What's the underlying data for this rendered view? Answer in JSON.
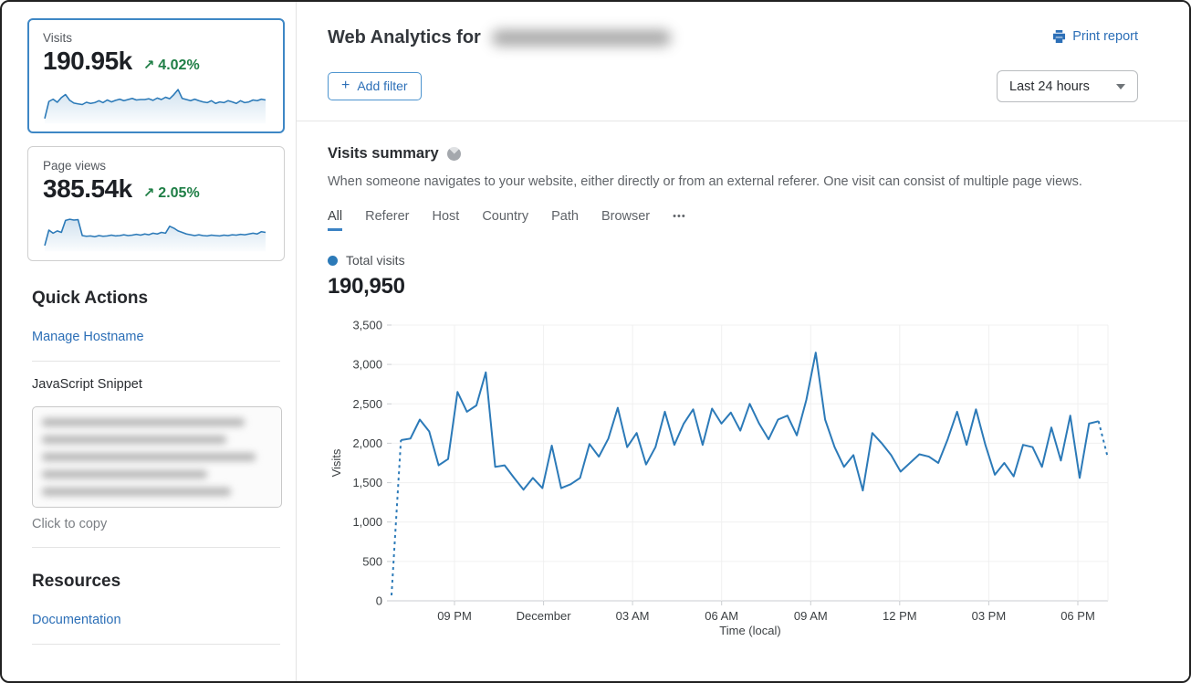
{
  "icons": {
    "trend_up": "↗",
    "plus": "+",
    "dots": "•••"
  },
  "colors": {
    "accent_blue": "#2c7ab8",
    "link_blue": "#2c6fb7",
    "green": "#1e7e45",
    "selected_card_border": "#3e87c5",
    "grid": "#f0f0f0"
  },
  "sidebar": {
    "cards": [
      {
        "label": "Visits",
        "value": "190.95k",
        "change": "4.02%",
        "trend": "up",
        "selected": true,
        "spark": [
          8,
          52,
          58,
          50,
          62,
          70,
          55,
          48,
          46,
          44,
          50,
          47,
          49,
          54,
          49,
          56,
          51,
          55,
          58,
          54,
          57,
          60,
          56,
          57,
          57,
          59,
          55,
          61,
          57,
          63,
          59,
          70,
          83,
          60,
          57,
          54,
          58,
          54,
          51,
          49,
          54,
          47,
          51,
          49,
          54,
          51,
          47,
          54,
          49,
          51,
          56,
          54,
          58,
          56
        ]
      },
      {
        "label": "Page views",
        "value": "385.54k",
        "change": "2.05%",
        "trend": "up",
        "selected": false,
        "spark": [
          10,
          50,
          42,
          48,
          44,
          75,
          78,
          76,
          77,
          36,
          34,
          35,
          33,
          36,
          34,
          35,
          37,
          35,
          36,
          38,
          36,
          37,
          39,
          37,
          40,
          38,
          42,
          40,
          44,
          42,
          60,
          55,
          48,
          44,
          40,
          38,
          36,
          38,
          36,
          35,
          37,
          36,
          35,
          37,
          36,
          38,
          37,
          39,
          38,
          40,
          42,
          40,
          46,
          44
        ]
      }
    ],
    "quick_actions": {
      "title": "Quick Actions",
      "manage_hostname_label": "Manage Hostname",
      "snippet_label": "JavaScript Snippet",
      "snippet_redacted": true,
      "copy_hint": "Click to copy"
    },
    "resources": {
      "title": "Resources",
      "documentation_label": "Documentation"
    }
  },
  "header": {
    "title_prefix": "Web Analytics for",
    "domain_redacted": true,
    "print_label": "Print report",
    "add_filter_label": "Add filter",
    "time_range": "Last 24 hours"
  },
  "summary": {
    "title": "Visits summary",
    "description": "When someone navigates to your website, either directly or from an external referer. One visit can consist of multiple page views.",
    "tabs": [
      "All",
      "Referer",
      "Host",
      "Country",
      "Path",
      "Browser"
    ],
    "active_tab": "All",
    "legend_label": "Total visits",
    "total_visits": "190,950"
  },
  "chart_data": {
    "type": "line",
    "title": "Visits summary",
    "xlabel": "Time (local)",
    "ylabel": "Visits",
    "ylim": [
      0,
      3500
    ],
    "y_ticks": [
      3500,
      3000,
      2500,
      2000,
      1500,
      1000,
      500,
      0
    ],
    "x_ticks": [
      "09 PM",
      "December",
      "03 AM",
      "06 AM",
      "09 AM",
      "12 PM",
      "03 PM",
      "06 PM"
    ],
    "grid": true,
    "legend_position": "top-left",
    "dashed_head_points": 2,
    "dashed_tail_points": 2,
    "series": [
      {
        "name": "Total visits",
        "values": [
          70,
          2040,
          2060,
          2300,
          2150,
          1720,
          1800,
          2650,
          2400,
          2480,
          2900,
          1700,
          1720,
          1560,
          1410,
          1560,
          1430,
          1970,
          1430,
          1480,
          1560,
          1990,
          1830,
          2060,
          2450,
          1950,
          2130,
          1730,
          1950,
          2400,
          1980,
          2250,
          2430,
          1980,
          2440,
          2250,
          2390,
          2160,
          2500,
          2250,
          2050,
          2300,
          2350,
          2100,
          2550,
          3150,
          2300,
          1950,
          1700,
          1850,
          1400,
          2130,
          2000,
          1850,
          1640,
          1750,
          1860,
          1830,
          1750,
          2050,
          2400,
          1980,
          2430,
          1980,
          1600,
          1750,
          1580,
          1980,
          1950,
          1700,
          2200,
          1780,
          2350,
          1560,
          2250,
          2280,
          1810
        ]
      }
    ]
  }
}
